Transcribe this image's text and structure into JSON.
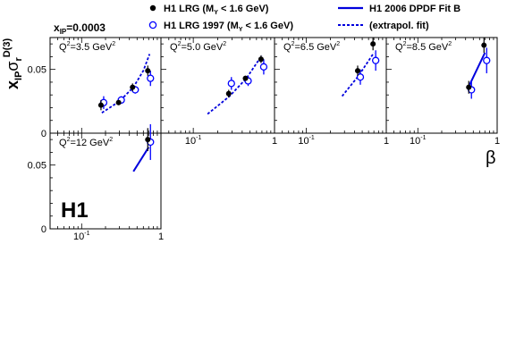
{
  "header": {
    "xip_main": "x",
    "xip_sub": "IP",
    "xip_value": "=0.0003"
  },
  "y_axis_label": {
    "x_main": "x",
    "x_sub": "IP",
    "sigma": "σ",
    "sigma_sub": "r",
    "sigma_sup": "D(3)"
  },
  "x_axis_label": "β",
  "logo": "H1",
  "legend": {
    "entries": [
      {
        "key": "h1lrg",
        "marker": "filled-circle",
        "prefix": "H1 LRG (M",
        "sub": "Y",
        "suffix": " < 1.6 GeV)"
      },
      {
        "key": "h1lrg1997",
        "marker": "open-circle",
        "prefix": "H1 LRG 1997 (M",
        "sub": "Y",
        "suffix": " < 1.6 GeV)"
      },
      {
        "key": "fitb",
        "marker": "solid-line",
        "label": "H1 2006 DPDF Fit B"
      },
      {
        "key": "extrapol",
        "marker": "dashed-line",
        "label": "(extrapol. fit)"
      }
    ]
  },
  "colors": {
    "open_markers": "#0000ff",
    "fit_line": "#0000dd",
    "filled_markers": "#000000",
    "axes": "#000000"
  },
  "chart_data": [
    {
      "type": "scatter",
      "panel": "q2_3.5",
      "q2_label": {
        "prefix": "Q",
        "sup": "2",
        "value": "=3.5 GeV",
        "unit_sup": "2"
      },
      "xscale": "log",
      "xlim": [
        0.04,
        1.0
      ],
      "ylim": [
        0,
        0.075
      ],
      "y_ticks": [
        {
          "value": 0.05,
          "label": "0.05"
        },
        {
          "value": 0,
          "label": "0"
        }
      ],
      "x_ticks": [],
      "h1lrg": [
        {
          "x": 0.18,
          "y": 0.022,
          "err": 0.004
        },
        {
          "x": 0.3,
          "y": 0.024,
          "err": 0.002
        },
        {
          "x": 0.45,
          "y": 0.036,
          "err": 0.003
        },
        {
          "x": 0.7,
          "y": 0.049,
          "err": 0.004
        }
      ],
      "h1lrg1997": [
        {
          "x": 0.18,
          "y": 0.024,
          "err": 0.005
        },
        {
          "x": 0.3,
          "y": 0.026,
          "err": 0.003
        },
        {
          "x": 0.45,
          "y": 0.034,
          "err": 0.003
        },
        {
          "x": 0.7,
          "y": 0.043,
          "err": 0.006
        }
      ],
      "fit_solid": [],
      "fit_extrapol": [
        {
          "x": 0.18,
          "y": 0.016
        },
        {
          "x": 0.3,
          "y": 0.025
        },
        {
          "x": 0.45,
          "y": 0.036
        },
        {
          "x": 0.6,
          "y": 0.049
        },
        {
          "x": 0.72,
          "y": 0.062
        }
      ]
    },
    {
      "type": "scatter",
      "panel": "q2_5.0",
      "q2_label": {
        "prefix": "Q",
        "sup": "2",
        "value": "=5.0 GeV",
        "unit_sup": "2"
      },
      "xscale": "log",
      "xlim": [
        0.04,
        1.0
      ],
      "ylim": [
        0,
        0.075
      ],
      "y_ticks": [],
      "x_ticks": [
        {
          "value": 0.1,
          "label": "10",
          "sup": "-1"
        },
        {
          "value": 1,
          "label": "1"
        }
      ],
      "h1lrg": [
        {
          "x": 0.28,
          "y": 0.031,
          "err": 0.003
        },
        {
          "x": 0.45,
          "y": 0.043,
          "err": 0.002
        },
        {
          "x": 0.7,
          "y": 0.058,
          "err": 0.003
        }
      ],
      "h1lrg1997": [
        {
          "x": 0.28,
          "y": 0.039,
          "err": 0.005
        },
        {
          "x": 0.45,
          "y": 0.041,
          "err": 0.004
        },
        {
          "x": 0.7,
          "y": 0.052,
          "err": 0.006
        }
      ],
      "fit_solid": [],
      "fit_extrapol": [
        {
          "x": 0.15,
          "y": 0.015
        },
        {
          "x": 0.28,
          "y": 0.029
        },
        {
          "x": 0.45,
          "y": 0.043
        },
        {
          "x": 0.7,
          "y": 0.061
        }
      ]
    },
    {
      "type": "scatter",
      "panel": "q2_6.5",
      "q2_label": {
        "prefix": "Q",
        "sup": "2",
        "value": "=6.5 GeV",
        "unit_sup": "2"
      },
      "xscale": "log",
      "xlim": [
        0.04,
        1.0
      ],
      "ylim": [
        0,
        0.075
      ],
      "y_ticks": [],
      "x_ticks": [
        {
          "value": 0.1,
          "label": "10",
          "sup": "-1"
        },
        {
          "value": 1,
          "label": "1"
        }
      ],
      "h1lrg": [
        {
          "x": 0.45,
          "y": 0.049,
          "err": 0.004
        },
        {
          "x": 0.7,
          "y": 0.07,
          "err": 0.005
        }
      ],
      "h1lrg1997": [
        {
          "x": 0.45,
          "y": 0.044,
          "err": 0.006
        },
        {
          "x": 0.7,
          "y": 0.057,
          "err": 0.008
        }
      ],
      "fit_solid": [],
      "fit_extrapol": [
        {
          "x": 0.28,
          "y": 0.029
        },
        {
          "x": 0.45,
          "y": 0.045
        },
        {
          "x": 0.7,
          "y": 0.063
        }
      ]
    },
    {
      "type": "scatter",
      "panel": "q2_8.5",
      "q2_label": {
        "prefix": "Q",
        "sup": "2",
        "value": "=8.5 GeV",
        "unit_sup": "2"
      },
      "xscale": "log",
      "xlim": [
        0.04,
        1.0
      ],
      "ylim": [
        0,
        0.075
      ],
      "y_ticks": [],
      "x_ticks": [
        {
          "value": 0.1,
          "label": "10",
          "sup": "-1"
        },
        {
          "value": 1,
          "label": "1"
        }
      ],
      "h1lrg": [
        {
          "x": 0.45,
          "y": 0.036,
          "err": 0.005
        },
        {
          "x": 0.7,
          "y": 0.069,
          "err": 0.006
        }
      ],
      "h1lrg1997": [
        {
          "x": 0.45,
          "y": 0.034,
          "err": 0.007
        },
        {
          "x": 0.7,
          "y": 0.057,
          "err": 0.01
        }
      ],
      "fit_solid": [
        {
          "x": 0.45,
          "y": 0.038
        },
        {
          "x": 0.7,
          "y": 0.063
        }
      ],
      "fit_extrapol": []
    },
    {
      "type": "scatter",
      "panel": "q2_12",
      "q2_label": {
        "prefix": "Q",
        "sup": "2",
        "value": "=12 GeV",
        "unit_sup": "2"
      },
      "xscale": "log",
      "xlim": [
        0.04,
        1.0
      ],
      "ylim": [
        0,
        0.075
      ],
      "y_ticks": [
        {
          "value": 0.05,
          "label": "0.05"
        },
        {
          "value": 0,
          "label": "0"
        }
      ],
      "x_ticks": [
        {
          "value": 0.1,
          "label": "10",
          "sup": "-1"
        },
        {
          "value": 1,
          "label": "1"
        }
      ],
      "h1lrg": [
        {
          "x": 0.7,
          "y": 0.07,
          "err": 0.009
        }
      ],
      "h1lrg1997": [
        {
          "x": 0.7,
          "y": 0.068,
          "err": 0.014
        }
      ],
      "fit_solid": [
        {
          "x": 0.45,
          "y": 0.045
        },
        {
          "x": 0.7,
          "y": 0.064
        }
      ],
      "fit_extrapol": []
    }
  ]
}
